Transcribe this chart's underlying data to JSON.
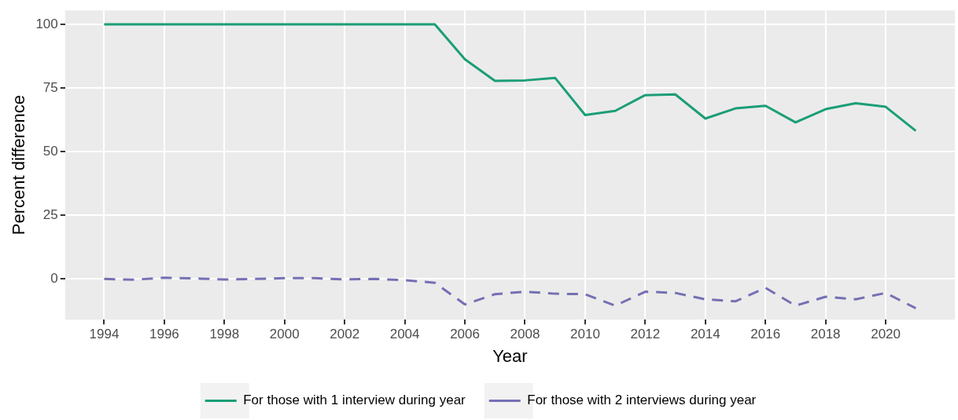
{
  "chart_data": {
    "type": "line",
    "xlabel": "Year",
    "ylabel": "Percent difference",
    "x": [
      1994,
      1995,
      1996,
      1997,
      1998,
      1999,
      2000,
      2001,
      2002,
      2003,
      2004,
      2005,
      2006,
      2007,
      2008,
      2009,
      2010,
      2011,
      2012,
      2013,
      2014,
      2015,
      2016,
      2017,
      2018,
      2019,
      2020,
      2021
    ],
    "series": [
      {
        "name": "For those with 1 interview during year",
        "color": "#1b9e77",
        "line_style": "solid",
        "values": [
          100,
          100,
          100,
          100,
          100,
          100,
          100,
          100,
          100,
          100,
          100,
          100,
          86.3,
          77.8,
          78,
          79,
          64.4,
          66,
          72.2,
          72.5,
          63,
          67,
          68,
          61.5,
          66.7,
          69,
          67.6,
          58.2
        ]
      },
      {
        "name": "For those with 2 interviews during year",
        "color": "#7570b3",
        "line_style": "dashed",
        "values": [
          0,
          -0.3,
          0.5,
          0.2,
          -0.2,
          0,
          0.3,
          0.3,
          -0.2,
          0,
          -0.5,
          -1.5,
          -10,
          -6,
          -5,
          -5.8,
          -6,
          -10.5,
          -5,
          -5.5,
          -8,
          -8.8,
          -3.5,
          -10.5,
          -7,
          -8,
          -5.5,
          -11.5
        ]
      }
    ],
    "xlim": [
      1992.7,
      2022.3
    ],
    "xticks": [
      1994,
      1996,
      1998,
      2000,
      2002,
      2004,
      2006,
      2008,
      2010,
      2012,
      2014,
      2016,
      2018,
      2020
    ],
    "ylim": [
      -16,
      105.5
    ],
    "yticks": [
      0,
      25,
      50,
      75,
      100
    ],
    "grid": true,
    "legend": "bottom",
    "marker": "none"
  }
}
